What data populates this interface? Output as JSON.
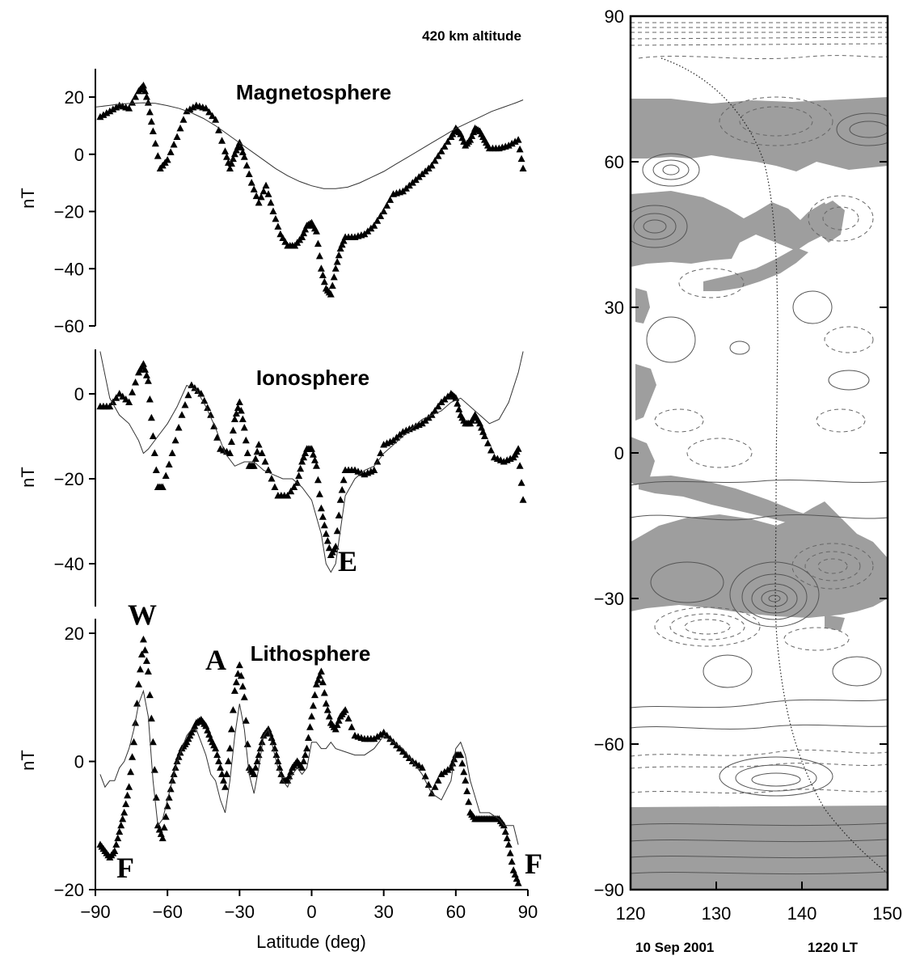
{
  "header": {
    "altitude_label": "420 km altitude"
  },
  "map": {
    "date_label": "10 Sep 2001",
    "local_time_label": "1220 LT",
    "xlim": [
      120,
      150
    ],
    "ylim": [
      -90,
      90
    ],
    "x_ticks": [
      "120",
      "130",
      "140",
      "150"
    ],
    "y_ticks": [
      "90",
      "60",
      "30",
      "0",
      "−30",
      "−60",
      "−90"
    ],
    "land_color": "#9e9e9e",
    "track_longitude_at_equator": 137
  },
  "chart_data": [
    {
      "type": "line",
      "title": "Magnetosphere",
      "ylabel": "nT",
      "xlabel": "",
      "xlim": [
        -90,
        90
      ],
      "ylim": [
        -60,
        30
      ],
      "y_ticks": [
        "20",
        "0",
        "−20",
        "−40",
        "−60"
      ],
      "series": [
        {
          "style": "triangles",
          "x": [
            -88,
            -84,
            -80,
            -76,
            -72,
            -70,
            -68,
            -66,
            -63,
            -60,
            -56,
            -52,
            -48,
            -44,
            -40,
            -36,
            -34,
            -32,
            -30,
            -28,
            -25,
            -22,
            -19,
            -16,
            -13,
            -10,
            -7,
            -4,
            -2,
            0,
            2,
            4,
            6,
            8,
            10,
            12,
            14,
            18,
            22,
            26,
            30,
            34,
            38,
            42,
            46,
            50,
            54,
            58,
            60,
            62,
            64,
            66,
            68,
            70,
            72,
            74,
            78,
            82,
            86,
            88
          ],
          "y": [
            13,
            15,
            17,
            16,
            22,
            24,
            18,
            8,
            -5,
            -2,
            6,
            15,
            17,
            16,
            12,
            1,
            -5,
            0,
            4,
            -1,
            -10,
            -17,
            -11,
            -20,
            -28,
            -32,
            -32,
            -29,
            -25,
            -24,
            -27,
            -40,
            -47,
            -49,
            -40,
            -33,
            -29,
            -29,
            -28,
            -25,
            -20,
            -14,
            -13,
            -10,
            -7,
            -4,
            1,
            6,
            9,
            7,
            3,
            5,
            9,
            8,
            5,
            2,
            2,
            3,
            5,
            -5
          ]
        },
        {
          "style": "line",
          "x": [
            -90,
            -85,
            -80,
            -75,
            -70,
            -65,
            -60,
            -55,
            -50,
            -45,
            -40,
            -35,
            -30,
            -25,
            -20,
            -15,
            -10,
            -5,
            0,
            5,
            10,
            15,
            20,
            25,
            30,
            35,
            40,
            45,
            50,
            55,
            60,
            65,
            70,
            75,
            80,
            85,
            88
          ],
          "y": [
            16.5,
            17,
            17.5,
            17.8,
            18,
            17.8,
            17,
            16,
            14.5,
            12.5,
            10,
            7,
            4,
            1,
            -2,
            -5,
            -7.5,
            -9.5,
            -11,
            -12,
            -12,
            -11.5,
            -10,
            -8,
            -6,
            -3.5,
            -1,
            1.5,
            4,
            6.5,
            9,
            11,
            13,
            15,
            16.5,
            18,
            19
          ]
        }
      ]
    },
    {
      "type": "line",
      "title": "Ionosphere",
      "ylabel": "nT",
      "xlabel": "",
      "xlim": [
        -90,
        90
      ],
      "ylim": [
        -50,
        10
      ],
      "y_ticks": [
        "0",
        "−20",
        "−40"
      ],
      "annotations": [
        "E"
      ],
      "series": [
        {
          "style": "triangles",
          "x": [
            -88,
            -84,
            -80,
            -76,
            -72,
            -70,
            -68,
            -66,
            -64,
            -62,
            -58,
            -54,
            -50,
            -46,
            -42,
            -38,
            -34,
            -32,
            -30,
            -28,
            -26,
            -24,
            -22,
            -18,
            -14,
            -10,
            -6,
            -4,
            -2,
            0,
            2,
            4,
            6,
            8,
            10,
            12,
            14,
            18,
            22,
            26,
            30,
            34,
            38,
            42,
            46,
            50,
            54,
            58,
            60,
            62,
            64,
            66,
            68,
            70,
            72,
            76,
            80,
            84,
            86,
            88
          ],
          "y": [
            -3,
            -3,
            0,
            -2,
            5,
            7,
            3,
            -10,
            -22,
            -22,
            -14,
            -5,
            2,
            0,
            -5,
            -13,
            -14,
            -6,
            -2,
            -8,
            -17,
            -17,
            -12,
            -18,
            -24,
            -24,
            -21,
            -16,
            -13,
            -13,
            -17,
            -27,
            -33,
            -38,
            -36,
            -25,
            -18,
            -18,
            -19,
            -18,
            -12,
            -11,
            -9,
            -8,
            -7,
            -5,
            -2,
            0,
            -1,
            -5,
            -7,
            -7,
            -5,
            -7,
            -10,
            -15,
            -16,
            -15,
            -13,
            -25
          ]
        },
        {
          "style": "line",
          "x": [
            -88,
            -84,
            -80,
            -76,
            -72,
            -70,
            -68,
            -64,
            -60,
            -56,
            -52,
            -48,
            -44,
            -40,
            -36,
            -32,
            -28,
            -24,
            -20,
            -16,
            -12,
            -8,
            -4,
            0,
            4,
            6,
            8,
            10,
            14,
            18,
            22,
            26,
            30,
            34,
            38,
            42,
            46,
            50,
            54,
            58,
            62,
            66,
            70,
            74,
            78,
            82,
            86,
            88
          ],
          "y": [
            10,
            -1,
            -5,
            -7,
            -11,
            -14,
            -13,
            -10,
            -7,
            -3,
            2,
            1,
            -3,
            -8,
            -14,
            -17,
            -16,
            -16,
            -18,
            -19,
            -20,
            -20,
            -22,
            -25,
            -33,
            -40,
            -42,
            -40,
            -24,
            -20,
            -18,
            -17,
            -14,
            -12,
            -10,
            -8,
            -6,
            -5,
            -4,
            -2,
            -1,
            -3,
            -5,
            -7,
            -6,
            -2,
            5,
            10
          ]
        }
      ]
    },
    {
      "type": "line",
      "title": "Lithosphere",
      "ylabel": "nT",
      "xlabel": "Latitude (deg)",
      "xlim": [
        -90,
        90
      ],
      "ylim": [
        -20,
        20
      ],
      "x_ticks": [
        "−90",
        "−60",
        "−30",
        "0",
        "30",
        "60",
        "90"
      ],
      "y_ticks": [
        "20",
        "0",
        "−20"
      ],
      "annotations": [
        "W",
        "A",
        "F",
        "F",
        "Lithosphere"
      ],
      "series": [
        {
          "style": "triangles",
          "x": [
            -88,
            -86,
            -84,
            -82,
            -80,
            -78,
            -76,
            -74,
            -72,
            -70,
            -68,
            -66,
            -64,
            -62,
            -60,
            -58,
            -56,
            -54,
            -52,
            -50,
            -48,
            -46,
            -44,
            -42,
            -40,
            -38,
            -36,
            -34,
            -32,
            -30,
            -28,
            -26,
            -24,
            -22,
            -20,
            -18,
            -16,
            -14,
            -12,
            -10,
            -8,
            -6,
            -4,
            -2,
            0,
            2,
            4,
            6,
            8,
            10,
            12,
            14,
            18,
            22,
            26,
            30,
            34,
            38,
            42,
            46,
            50,
            54,
            58,
            60,
            62,
            64,
            66,
            68,
            70,
            72,
            74,
            76,
            78,
            80,
            82,
            84,
            86
          ],
          "y": [
            -13,
            -14,
            -15,
            -14,
            -11,
            -8,
            -4,
            3,
            12,
            19,
            14,
            3,
            -10,
            -12,
            -7,
            -3,
            0,
            2,
            3,
            4.5,
            6,
            6.5,
            5.5,
            3.5,
            2,
            -1,
            -4,
            2,
            11,
            15,
            10,
            -1,
            -2,
            1,
            4,
            5,
            3,
            0,
            -3,
            -3,
            -1,
            0,
            -1,
            2,
            7,
            12,
            14,
            9,
            6,
            5,
            7,
            8,
            4,
            3.5,
            3.5,
            4.5,
            3,
            1.5,
            0,
            -1,
            -5,
            -2,
            -1,
            1,
            1,
            -3,
            -8,
            -9,
            -9,
            -9,
            -9,
            -9,
            -9,
            -10,
            -13,
            -17,
            -19
          ]
        },
        {
          "style": "line",
          "x": [
            -88,
            -86,
            -84,
            -82,
            -80,
            -78,
            -76,
            -74,
            -72,
            -70,
            -68,
            -66,
            -64,
            -62,
            -60,
            -58,
            -56,
            -54,
            -52,
            -50,
            -48,
            -46,
            -44,
            -42,
            -40,
            -38,
            -36,
            -34,
            -32,
            -30,
            -28,
            -26,
            -24,
            -22,
            -20,
            -18,
            -16,
            -14,
            -12,
            -10,
            -8,
            -6,
            -4,
            -2,
            0,
            2,
            4,
            6,
            8,
            10,
            14,
            18,
            22,
            26,
            30,
            34,
            38,
            42,
            46,
            50,
            54,
            58,
            60,
            62,
            64,
            66,
            70,
            74,
            78,
            80,
            82,
            84,
            86
          ],
          "y": [
            -2,
            -4,
            -3,
            -3,
            -1,
            0,
            2,
            5,
            9,
            11,
            7,
            -3,
            -10,
            -9,
            -6,
            -3,
            0,
            2,
            4,
            5,
            5,
            3,
            1,
            -2,
            -3,
            -6,
            -8,
            -3,
            4,
            9,
            5,
            -2,
            -5,
            -1,
            4,
            5,
            2,
            -1,
            -3,
            -4,
            -2,
            -1,
            -2,
            -1,
            3,
            3,
            2,
            2,
            3,
            2,
            1.5,
            1,
            1,
            2,
            4,
            3,
            2,
            0,
            -2,
            -5,
            -6,
            -3,
            2,
            3,
            1,
            -3,
            -8,
            -8,
            -9,
            -10,
            -10,
            -10,
            -13
          ]
        }
      ]
    }
  ]
}
